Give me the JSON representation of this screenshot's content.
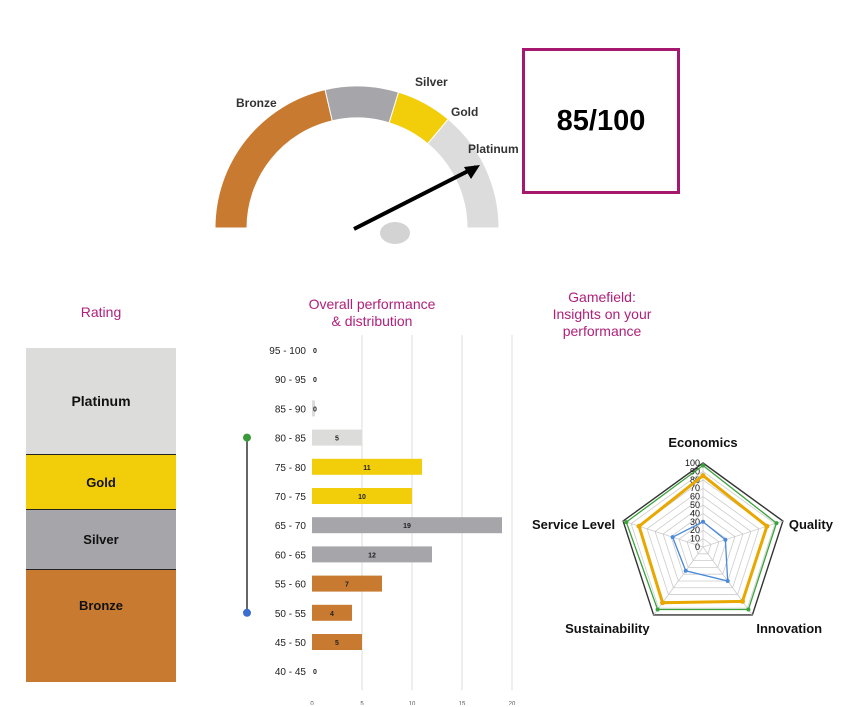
{
  "gauge": {
    "labels": [
      "Bronze",
      "Silver",
      "Gold",
      "Platinum"
    ],
    "colors": {
      "bronze": "#c87a31",
      "silver": "#a6a5aa",
      "gold": "#f2cd0a",
      "platinum": "#dcdcdc",
      "needle": "#000000"
    }
  },
  "score": {
    "text": "85/100"
  },
  "rating": {
    "title": "Rating",
    "tiers": [
      {
        "label": "Platinum",
        "color": "#dcdcda"
      },
      {
        "label": "Gold",
        "color": "#f2cd0a"
      },
      {
        "label": "Silver",
        "color": "#a6a5aa"
      },
      {
        "label": "Bronze",
        "color": "#c87a31"
      }
    ]
  },
  "distribution": {
    "title_line1": "Overall performance",
    "title_line2": "& distribution"
  },
  "gamefield": {
    "title_line1": "Gamefield:",
    "title_line2": "Insights on your",
    "title_line3": "performance"
  },
  "chart_data": [
    {
      "type": "bar",
      "orientation": "horizontal",
      "categories": [
        "95 - 100",
        "90 - 95",
        "85 - 90",
        "80 - 85",
        "75 - 80",
        "70 - 75",
        "65 - 70",
        "60 - 65",
        "55 - 60",
        "50 - 55",
        "45 - 50",
        "40 - 45"
      ],
      "values": [
        0,
        0,
        0,
        5,
        11,
        10,
        19,
        12,
        7,
        4,
        5,
        0
      ],
      "bar_tiers": [
        "platinum",
        "platinum",
        "platinum",
        "platinum",
        "gold",
        "gold",
        "silver",
        "silver",
        "bronze",
        "bronze",
        "bronze",
        "bronze"
      ],
      "xticks": [
        0,
        5,
        10,
        15,
        20
      ],
      "xlim": [
        0,
        20
      ],
      "range_marker": {
        "from": "80 - 85",
        "to": "50 - 55",
        "colors": {
          "top": "#3a9a3a",
          "bottom": "#3a6fd0",
          "line": "#333333"
        }
      }
    },
    {
      "type": "radar",
      "axes": [
        "Economics",
        "Quality",
        "Innovation",
        "Sustainability",
        "Service Level"
      ],
      "rticks": [
        0,
        10,
        20,
        30,
        40,
        50,
        60,
        70,
        80,
        90,
        100
      ],
      "rlim": [
        0,
        100
      ],
      "series": [
        {
          "color": "#3aa33a",
          "values": [
            97,
            92,
            92,
            92,
            96
          ]
        },
        {
          "color": "#e8a800",
          "values": [
            85,
            80,
            80,
            82,
            80
          ]
        },
        {
          "color": "#4a8ad8",
          "values": [
            30,
            28,
            50,
            35,
            38
          ]
        }
      ]
    }
  ]
}
